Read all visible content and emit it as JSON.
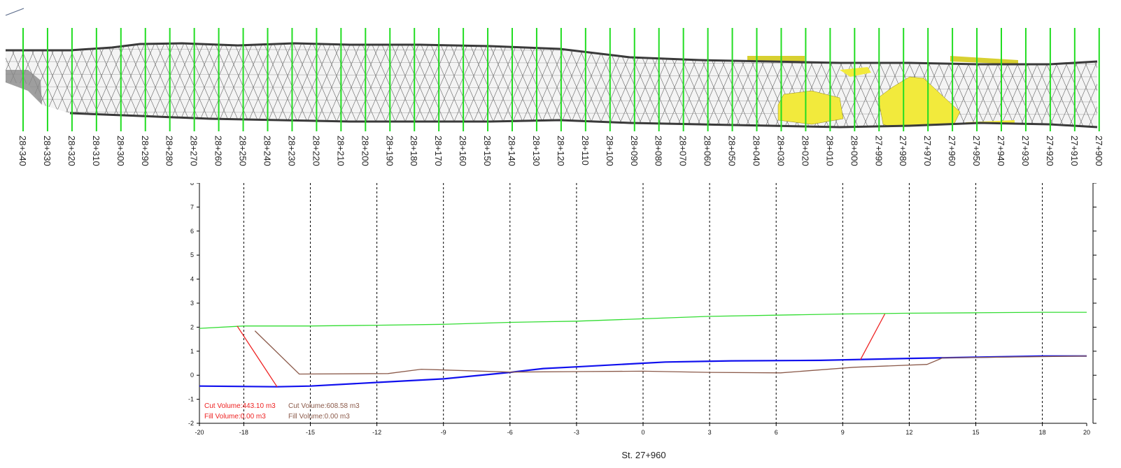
{
  "plan_view": {
    "stations": [
      "28+340",
      "28+330",
      "28+320",
      "28+310",
      "28+300",
      "28+290",
      "28+280",
      "28+270",
      "28+260",
      "28+250",
      "28+240",
      "28+230",
      "28+220",
      "28+210",
      "28+200",
      "28+190",
      "28+180",
      "28+170",
      "28+160",
      "28+150",
      "28+140",
      "28+130",
      "28+120",
      "28+110",
      "28+100",
      "28+090",
      "28+080",
      "28+070",
      "28+060",
      "28+050",
      "28+040",
      "28+030",
      "28+020",
      "28+010",
      "28+000",
      "27+990",
      "27+980",
      "27+970",
      "27+960",
      "27+950",
      "27+940",
      "27+930",
      "27+920",
      "27+910",
      "27+900"
    ],
    "colors": {
      "mesh": "#555555",
      "edge": "#3a3a3a",
      "section_line": "#22dd22",
      "highlight": "#f2ea3c"
    }
  },
  "chart_data": {
    "type": "line",
    "xlabel": "St. 27+960",
    "ylabel": "",
    "xlim": [
      -20,
      20
    ],
    "ylim": [
      -2,
      8
    ],
    "xticks": [
      -20,
      -18,
      -15,
      -12,
      -9,
      -6,
      -3,
      0,
      3,
      6,
      9,
      12,
      15,
      18,
      20
    ],
    "yticks": [
      -2,
      -1,
      0,
      1,
      2,
      3,
      4,
      5,
      6,
      7,
      8
    ],
    "dashed_gridlines_x": [
      -18,
      -15,
      -12,
      -9,
      -6,
      -3,
      0,
      3,
      6,
      9,
      12,
      15,
      18
    ],
    "series": [
      {
        "color": "#33dd33",
        "x": [
          -20,
          -18,
          -15,
          -12,
          -9,
          -6,
          -3,
          0,
          3,
          6,
          9,
          12,
          15,
          18,
          20
        ],
        "y": [
          1.95,
          2.05,
          2.05,
          2.08,
          2.12,
          2.2,
          2.25,
          2.35,
          2.45,
          2.5,
          2.55,
          2.58,
          2.6,
          2.62,
          2.62
        ]
      },
      {
        "color": "#1010ee",
        "x": [
          -20,
          -16.5,
          -15,
          -12,
          -9,
          -6,
          -4.5,
          -3,
          0,
          1,
          4,
          8,
          12,
          15,
          18,
          20
        ],
        "y": [
          -0.45,
          -0.48,
          -0.45,
          -0.3,
          -0.15,
          0.12,
          0.28,
          0.35,
          0.5,
          0.55,
          0.6,
          0.62,
          0.7,
          0.75,
          0.8,
          0.8
        ]
      },
      {
        "color": "#8b5a4a",
        "x": [
          -17.5,
          -15.5,
          -11.5,
          -10,
          -6,
          -3,
          0,
          3,
          6.2,
          9.5,
          12.8,
          13.5,
          20
        ],
        "y": [
          1.85,
          0.05,
          0.07,
          0.25,
          0.13,
          0.15,
          0.17,
          0.12,
          0.1,
          0.33,
          0.45,
          0.72,
          0.8
        ]
      },
      {
        "color": "#ee2222",
        "x": [
          -18.3,
          -16.5
        ],
        "y": [
          2.05,
          -0.48
        ]
      },
      {
        "color": "#ee2222",
        "x": [
          9.8,
          10.9
        ],
        "y": [
          0.65,
          2.55
        ]
      }
    ],
    "annotations": {
      "cut_volume_1": "Cut Volume:443.10 m3",
      "fill_volume_1": "Fill Volume:0.00 m3",
      "cut_volume_2": "Cut Volume:608.58 m3",
      "fill_volume_2": "Fill Volume:0.00 m3",
      "color_1": "#ee2222",
      "color_2": "#8b5a4a"
    }
  }
}
